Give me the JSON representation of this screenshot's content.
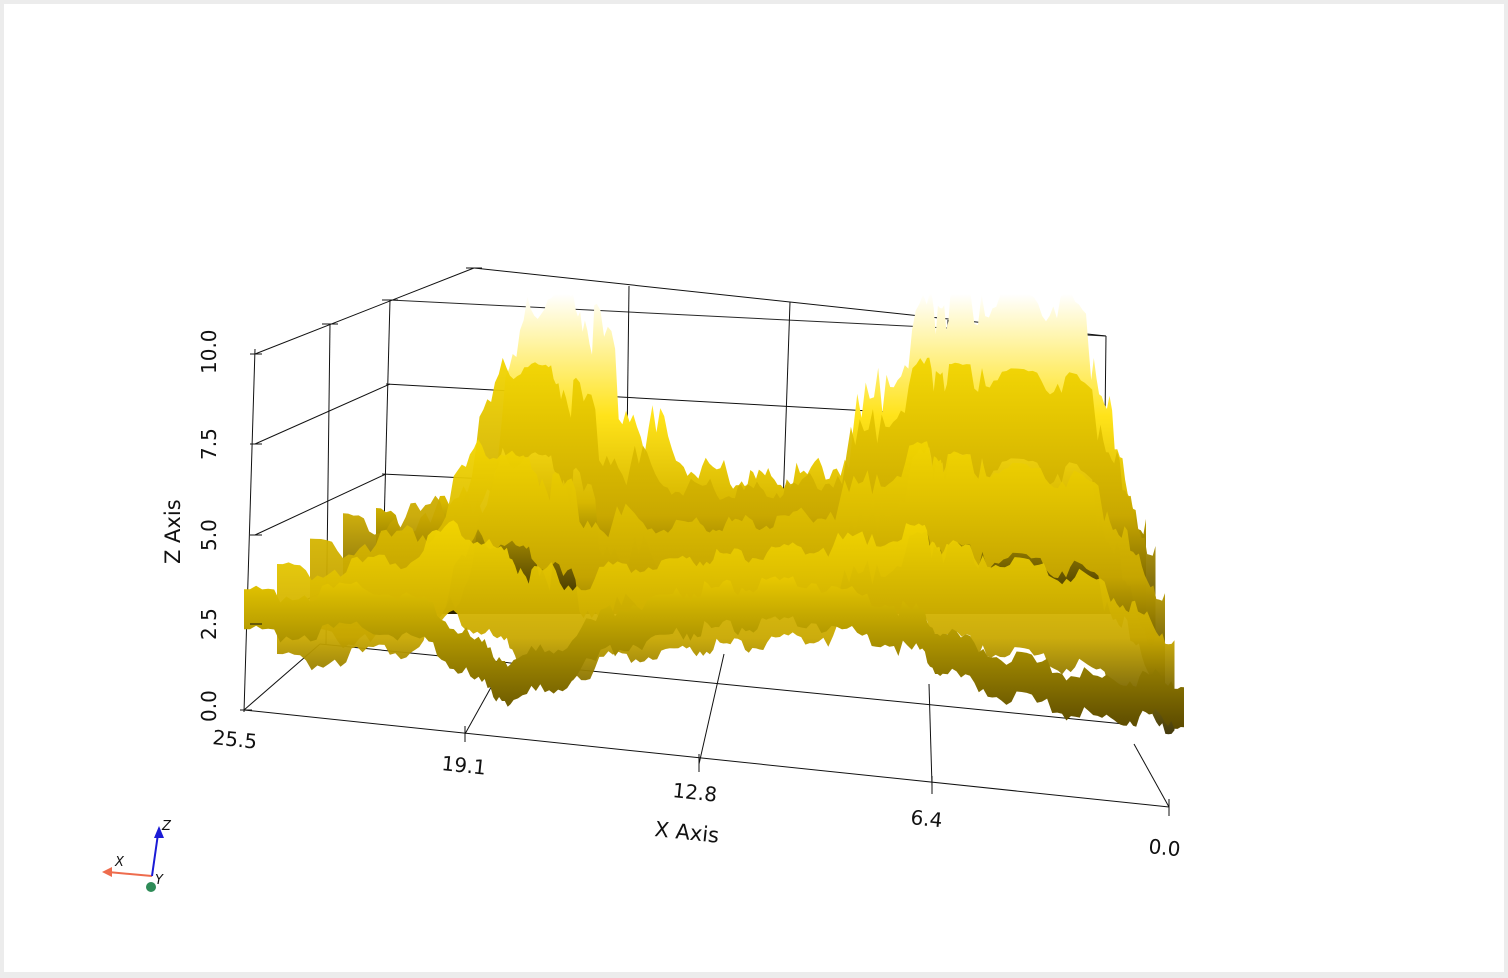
{
  "chart_data": {
    "type": "surface",
    "x_axis": {
      "title": "X Axis",
      "range": [
        0.0,
        25.5
      ],
      "ticks": [
        "25.5",
        "19.1",
        "12.8",
        "6.4",
        "0.0"
      ]
    },
    "z_axis": {
      "title": "Z Axis",
      "range": [
        0.0,
        10.0
      ],
      "ticks": [
        "0.0",
        "2.5",
        "5.0",
        "7.5",
        "10.0"
      ]
    },
    "y_axis": {
      "title": "",
      "ticks_visible": false
    },
    "surface_color": "#ffe000",
    "shadow_color": "#1a1400",
    "grid": true,
    "profile": {
      "note_x": [
        25.5,
        23.6,
        21.8,
        20.4,
        19.1,
        18.2,
        16.8,
        15.3,
        13.9,
        12.8,
        11.6,
        10.2,
        8.6,
        7.2,
        6.4,
        5.0,
        3.4,
        2.0,
        1.0,
        0.0
      ],
      "front_z": [
        2.4,
        2.6,
        2.9,
        2.3,
        0.9,
        0.4,
        1.2,
        2.6,
        3.1,
        3.4,
        3.5,
        3.8,
        3.3,
        2.8,
        2.0,
        1.4,
        0.9,
        0.6,
        0.8,
        0.7
      ],
      "back_peak_z": [
        2.6,
        3.0,
        3.5,
        10.0,
        10.0,
        8.6,
        5.8,
        4.6,
        4.2,
        4.0,
        4.1,
        4.4,
        7.4,
        9.6,
        10.0,
        10.0,
        10.0,
        9.2,
        4.8,
        2.2
      ]
    }
  },
  "orientation_widget": {
    "x_label": "X",
    "y_label": "Y",
    "z_label": "Z",
    "x_color": "#ee6c4d",
    "y_color": "#2e8b57",
    "z_color": "#1b1bd6"
  }
}
